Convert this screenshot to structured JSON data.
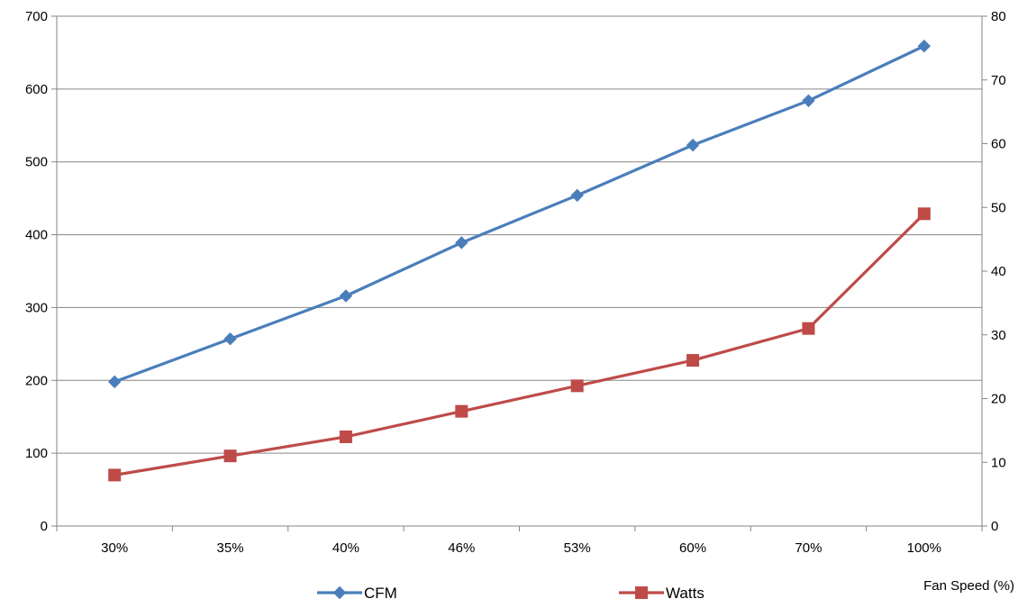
{
  "chart_data": {
    "type": "line",
    "categories": [
      "30%",
      "35%",
      "40%",
      "46%",
      "53%",
      "60%",
      "70%",
      "100%"
    ],
    "series": [
      {
        "name": "CFM",
        "axis": "left",
        "color": "#4A7EBB",
        "marker": "diamond",
        "values": [
          198,
          257,
          316,
          389,
          454,
          523,
          584,
          659
        ]
      },
      {
        "name": "Watts",
        "axis": "right",
        "color": "#BE4B48",
        "marker": "square",
        "values": [
          8,
          11,
          14,
          18,
          22,
          26,
          31,
          49
        ]
      }
    ],
    "xlabel": "Fan Speed (%)",
    "ylabel": "",
    "y2label": "",
    "ylim": [
      0,
      700
    ],
    "y2lim": [
      0,
      80
    ],
    "yticks": [
      "0",
      "100",
      "200",
      "300",
      "400",
      "500",
      "600",
      "700"
    ],
    "y2ticks": [
      "0",
      "10",
      "20",
      "30",
      "40",
      "50",
      "60",
      "70",
      "80"
    ],
    "grid": true,
    "legend_position": "bottom"
  }
}
